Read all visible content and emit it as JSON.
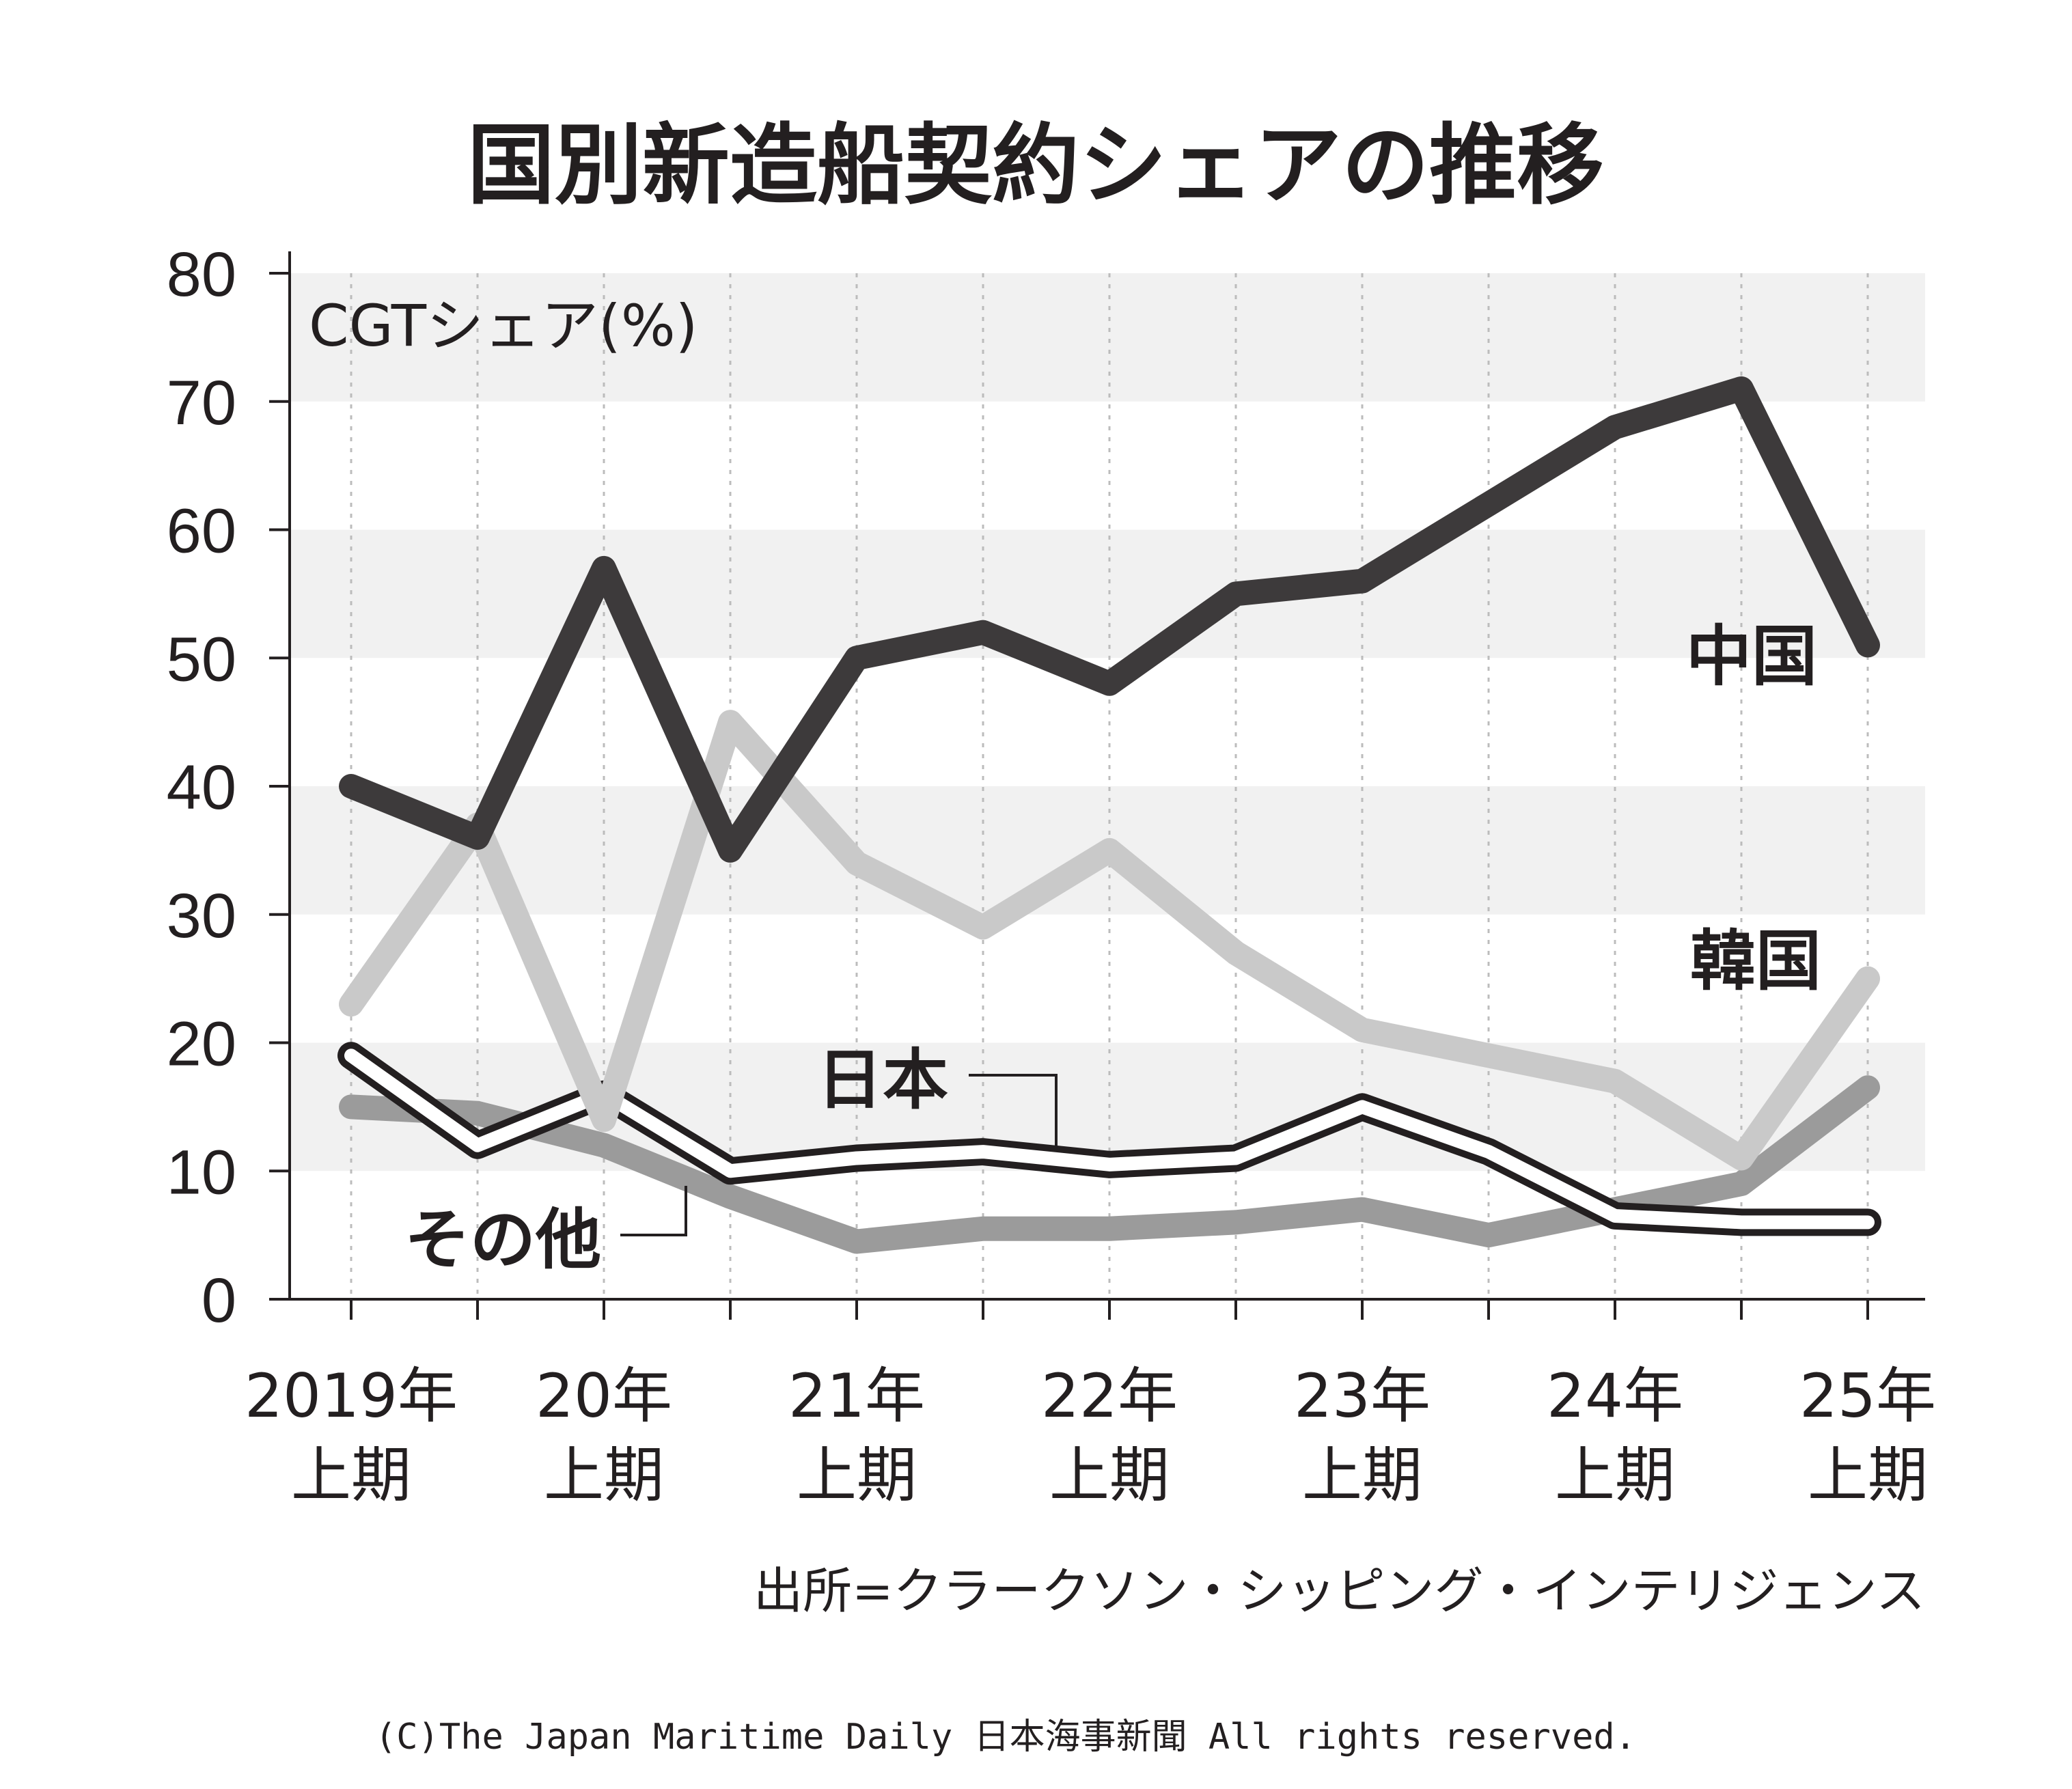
{
  "chart_data": {
    "type": "line",
    "title": "国別新造船契約シェアの推移",
    "ylabel": "CGTシェア(%)",
    "ylim": [
      0,
      80
    ],
    "yticks": [
      "0",
      "10",
      "20",
      "30",
      "40",
      "50",
      "60",
      "70",
      "80"
    ],
    "x": [
      "2019H1",
      "2019H2",
      "2020H1",
      "2020H2",
      "2021H1",
      "2021H2",
      "2022H1",
      "2022H2",
      "2023H1",
      "2023H2",
      "2024H1",
      "2024H2",
      "2025H1"
    ],
    "xtick_labels": [
      {
        "line1": "2019年",
        "line2": "上期"
      },
      {
        "line1": "20年",
        "line2": "上期"
      },
      {
        "line1": "21年",
        "line2": "上期"
      },
      {
        "line1": "22年",
        "line2": "上期"
      },
      {
        "line1": "23年",
        "line2": "上期"
      },
      {
        "line1": "24年",
        "line2": "上期"
      },
      {
        "line1": "25年",
        "line2": "上期"
      }
    ],
    "grid": "horizontal bands and vertical dotted lines",
    "series": [
      {
        "name": "中国",
        "color": "#3d3a3b",
        "style": "thick-dark",
        "values": [
          40,
          36,
          57,
          35,
          50,
          52,
          48,
          55,
          56,
          62,
          68,
          71,
          51
        ]
      },
      {
        "name": "韓国",
        "color": "#c9c9c9",
        "style": "thick-light",
        "values": [
          23,
          37,
          14,
          45,
          34,
          29,
          35,
          27,
          21,
          19,
          17,
          11,
          25
        ]
      },
      {
        "name": "日本",
        "color": "#231f20",
        "style": "outline",
        "values": [
          19,
          12,
          16,
          10,
          11,
          11.5,
          10.5,
          11,
          15,
          11.5,
          6.5,
          6,
          6
        ]
      },
      {
        "name": "その他",
        "color": "#9b9b9b",
        "style": "thick-mid",
        "values": [
          15,
          14.5,
          12,
          8,
          4.5,
          5.5,
          5.5,
          6,
          7,
          5,
          7,
          9,
          16.5
        ]
      }
    ],
    "source": "出所=クラークソン・シッピング・インテリジェンス",
    "copyright": "(C)The Japan Maritime Daily 日本海事新聞 All rights reserved."
  }
}
